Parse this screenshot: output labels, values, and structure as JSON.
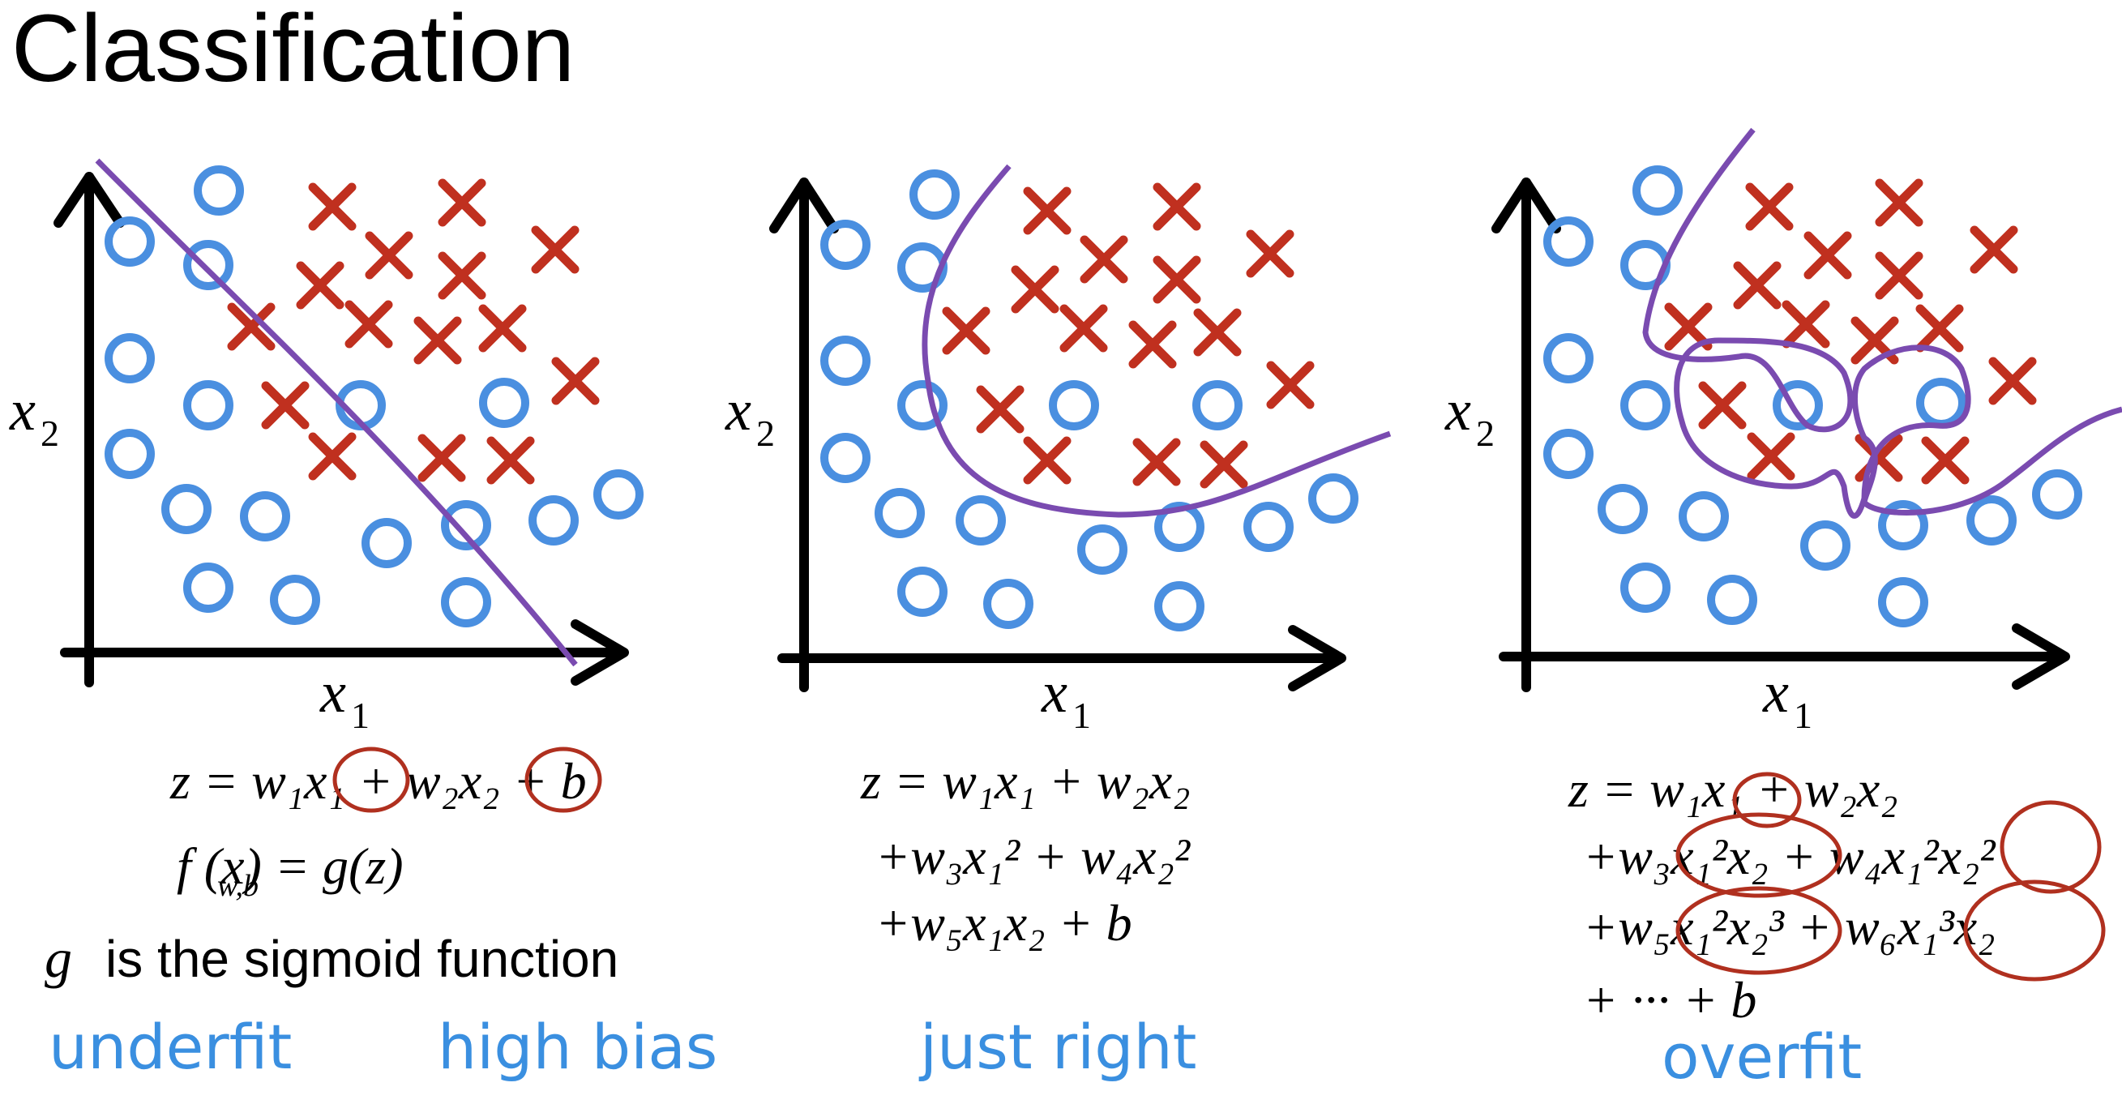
{
  "title": "Classification",
  "axis": {
    "x_label": "x",
    "x_sub": "1",
    "y_label": "x",
    "y_sub": "2"
  },
  "panels": {
    "left": {
      "eq1": "z = w₁x₁ + w₂x₂ + b",
      "eq2": "f (x) = g(z)",
      "eq2_sub": "w,b",
      "note_g": "g",
      "note_rest": "is the sigmoid function",
      "label_a": "underfit",
      "label_b": "high bias"
    },
    "middle": {
      "eq1": "z = w₁x₁ + w₂x₂",
      "eq2": "+w₃x₁² + w₄x₂²",
      "eq3": "+w₅x₁x₂ + b",
      "label": "just right"
    },
    "right": {
      "eq1": "z = w₁x₁ + w₂x₂",
      "eq2": "+w₃x₁²x₂ + w₄x₁²x₂²",
      "eq3": "+w₅x₁²x₂³ + w₆x₁³x₂",
      "eq4": "+ ··· + b",
      "label": "overfit"
    }
  },
  "colors": {
    "circle": "#4a8fe0",
    "cross": "#c0301f",
    "boundary": "#7a4bb0",
    "note": "#3a8fe0",
    "axis": "#000000"
  }
}
